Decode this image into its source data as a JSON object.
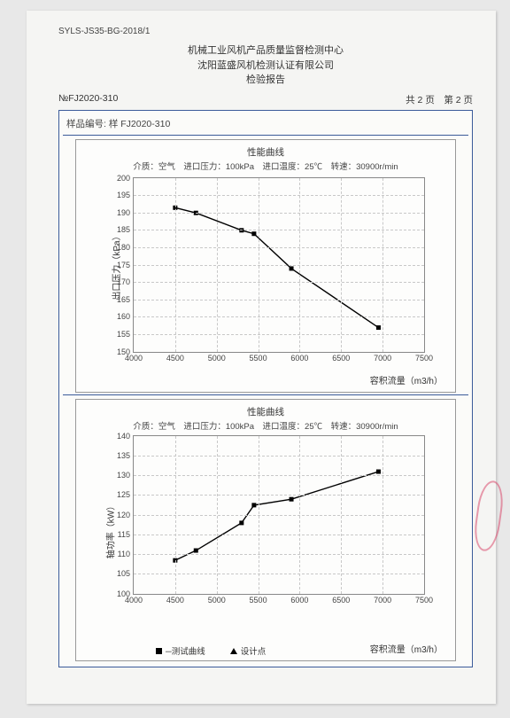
{
  "doc_code": "SYLS-JS35-BG-2018/1",
  "titles": {
    "line1": "机械工业风机产品质量监督检测中心",
    "line2": "沈阳蓝盛风机检测认证有限公司",
    "line3": "检验报告"
  },
  "report_no": "№FJ2020-310",
  "page_info": "共 2 页　第 2 页",
  "sample_label": "样品编号: 样 FJ2020-310",
  "chart1": {
    "type": "line",
    "title": "性能曲线",
    "subtitle": "介质：空气　进口压力：100kPa　进口温度：25℃　转速：30900r/min",
    "ylabel": "出口压力（kPa）",
    "xlabel": "容积流量（m3/h）",
    "xlim": [
      4000,
      7500
    ],
    "xtick_step": 500,
    "ylim": [
      150,
      200
    ],
    "ytick_step": 5,
    "grid_color": "#c8c8c8",
    "line_color": "#000000",
    "marker": "square",
    "series": {
      "x": [
        4500,
        4750,
        5300,
        5450,
        5900,
        6950
      ],
      "y": [
        191.5,
        190,
        185,
        184,
        174,
        157
      ]
    }
  },
  "chart2": {
    "type": "line",
    "title": "性能曲线",
    "subtitle": "介质：空气　进口压力：100kPa　进口温度：25℃　转速：30900r/min",
    "ylabel": "轴功率（kW）",
    "xlabel": "容积流量（m3/h）",
    "xlim": [
      4000,
      7500
    ],
    "xtick_step": 500,
    "ylim": [
      100,
      140
    ],
    "ytick_step": 5,
    "grid_color": "#c8c8c8",
    "line_color": "#000000",
    "marker": "square",
    "series": {
      "x": [
        4500,
        4750,
        5300,
        5450,
        5900,
        6950
      ],
      "y": [
        108.5,
        111,
        118,
        122.5,
        124,
        131
      ]
    },
    "legend": {
      "test_curve": "测试曲线",
      "design_point": "设计点"
    }
  }
}
